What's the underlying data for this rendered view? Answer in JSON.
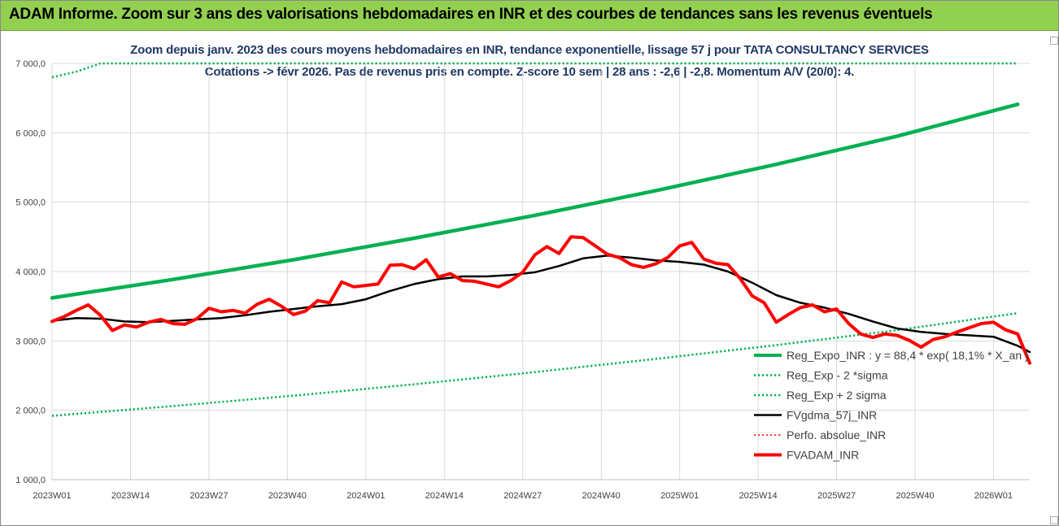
{
  "header": {
    "title": "ADAM Informe. Zoom sur 3 ans des valorisations hebdomadaires en INR et des courbes de tendances sans les revenus éventuels"
  },
  "colors": {
    "header_bg": "#92d050",
    "title_color": "#1f3864",
    "green": "#00b050",
    "black": "#000000",
    "red": "#ff0000",
    "grid": "#d9d9d9"
  },
  "chart_data": {
    "type": "line",
    "title_line1": "Zoom depuis janv. 2023 des cours moyens hebdomadaires en INR, tendance exponentielle, lissage 57 j pour TATA CONSULTANCY SERVICES",
    "title_line2": "Cotations -> févr 2026.  Pas de revenus pris en compte. Z-score 10 sem | 28 ans : -2,6 | -2,8. Momentum A/V (20/0): 4.",
    "xlabel": "",
    "ylabel": "",
    "ylim": [
      1000,
      7000
    ],
    "xlim": [
      0,
      162
    ],
    "yticks": [
      1000,
      2000,
      3000,
      4000,
      5000,
      6000,
      7000
    ],
    "ytick_labels": [
      "1 000,0",
      "2 000,0",
      "3 000,0",
      "4 000,0",
      "5 000,0",
      "6 000,0",
      "7 000,0"
    ],
    "xticks": [
      0,
      13,
      26,
      39,
      52,
      65,
      78,
      91,
      104,
      117,
      130,
      143,
      156
    ],
    "xtick_labels": [
      "2023W01",
      "2023W14",
      "2023W27",
      "2023W40",
      "2024W01",
      "2024W14",
      "2024W27",
      "2024W40",
      "2025W01",
      "2025W14",
      "2025W27",
      "2025W40",
      "2026W01"
    ],
    "grid": true,
    "legend_position": "right",
    "series": [
      {
        "name": "Reg_Expo_INR : y = 88,4 * exp( 18,1% *  X_an )",
        "style": "solid",
        "color": "#00b050",
        "width": 4.5,
        "x": [
          0,
          20,
          40,
          60,
          80,
          100,
          120,
          140,
          160
        ],
        "y": [
          3620,
          3885,
          4170,
          4480,
          4810,
          5165,
          5545,
          5950,
          6410
        ]
      },
      {
        "name": "Reg_Exp - 2 *sigma",
        "style": "dotted",
        "color": "#00b050",
        "width": 2.5,
        "x": [
          0,
          20,
          40,
          60,
          80,
          100,
          120,
          140,
          160
        ],
        "y": [
          1920,
          2060,
          2210,
          2375,
          2550,
          2740,
          2940,
          3155,
          3400
        ]
      },
      {
        "name": "Reg_Exp + 2 sigma",
        "style": "dotted",
        "color": "#00b050",
        "width": 2.5,
        "x": [
          0,
          4,
          8,
          160
        ],
        "y": [
          6800,
          6880,
          7000,
          7000
        ]
      },
      {
        "name": "FVgdma_57j_INR",
        "style": "solid",
        "color": "#000000",
        "width": 2.5,
        "x": [
          0,
          4,
          8,
          12,
          16,
          20,
          24,
          28,
          32,
          36,
          40,
          44,
          48,
          52,
          56,
          60,
          64,
          68,
          72,
          76,
          80,
          84,
          88,
          92,
          96,
          100,
          104,
          108,
          112,
          116,
          120,
          124,
          128,
          132,
          136,
          140,
          144,
          148,
          152,
          156,
          160,
          162
        ],
        "y": [
          3290,
          3330,
          3320,
          3280,
          3270,
          3290,
          3310,
          3330,
          3370,
          3420,
          3460,
          3500,
          3530,
          3600,
          3720,
          3820,
          3890,
          3930,
          3930,
          3950,
          3990,
          4080,
          4190,
          4230,
          4200,
          4160,
          4140,
          4100,
          4000,
          3840,
          3660,
          3550,
          3480,
          3390,
          3280,
          3180,
          3130,
          3100,
          3080,
          3060,
          2930,
          2840
        ]
      },
      {
        "name": "Perfo. absolue_INR",
        "style": "dotted",
        "color": "#ff0000",
        "width": 1.5,
        "x": [],
        "y": []
      },
      {
        "name": "FVADAM_INR",
        "style": "solid",
        "color": "#ff0000",
        "width": 4,
        "x": [
          0,
          2,
          4,
          6,
          8,
          10,
          12,
          14,
          16,
          18,
          20,
          22,
          24,
          26,
          28,
          30,
          32,
          34,
          36,
          38,
          40,
          42,
          44,
          46,
          48,
          50,
          52,
          54,
          56,
          58,
          60,
          62,
          64,
          66,
          68,
          70,
          72,
          74,
          76,
          78,
          80,
          82,
          84,
          86,
          88,
          90,
          92,
          94,
          96,
          98,
          100,
          102,
          104,
          106,
          108,
          110,
          112,
          114,
          116,
          118,
          120,
          122,
          124,
          126,
          128,
          130,
          132,
          134,
          136,
          138,
          140,
          142,
          144,
          146,
          148,
          150,
          152,
          154,
          156,
          158,
          160,
          162
        ],
        "y": [
          3280,
          3350,
          3440,
          3520,
          3370,
          3150,
          3230,
          3200,
          3270,
          3310,
          3250,
          3240,
          3320,
          3470,
          3420,
          3440,
          3400,
          3530,
          3600,
          3500,
          3380,
          3430,
          3580,
          3550,
          3850,
          3780,
          3800,
          3820,
          4090,
          4100,
          4040,
          4170,
          3920,
          3970,
          3870,
          3860,
          3820,
          3780,
          3870,
          3990,
          4240,
          4360,
          4260,
          4500,
          4490,
          4370,
          4250,
          4200,
          4100,
          4060,
          4110,
          4200,
          4370,
          4420,
          4180,
          4120,
          4100,
          3900,
          3650,
          3550,
          3270,
          3380,
          3480,
          3520,
          3420,
          3460,
          3250,
          3100,
          3050,
          3100,
          3080,
          3010,
          2910,
          3020,
          3060,
          3130,
          3190,
          3250,
          3270,
          3160,
          3100,
          2680
        ]
      }
    ]
  }
}
